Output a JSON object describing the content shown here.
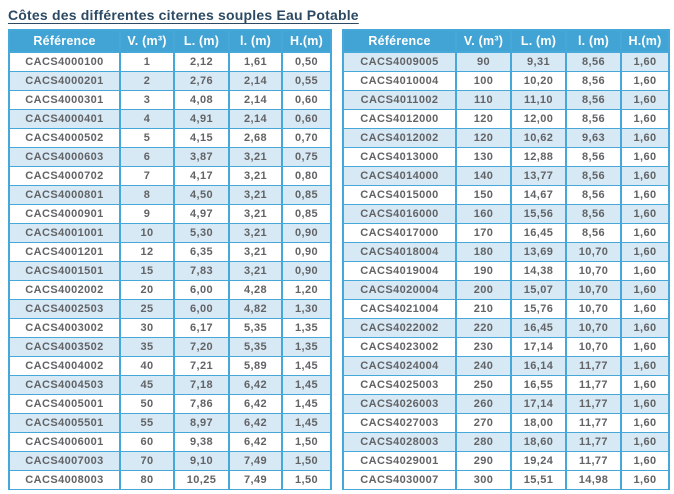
{
  "page": {
    "title": "Côtes des différentes citernes souples Eau Potable"
  },
  "colors": {
    "header_bg": "#41a4d4",
    "border": "#45a8d8",
    "row_alt": "#d8e9f6",
    "cell_text": "#626365",
    "header_text": "#ffffff",
    "title_color": "#2c4a63",
    "page_bg": "#ffffff"
  },
  "columns": [
    "Référence",
    "V. (m³)",
    "L. (m)",
    "l. (m)",
    "H.(m)"
  ],
  "left_table": {
    "rows": [
      [
        "CACS4000100",
        "1",
        "2,12",
        "1,61",
        "0,50"
      ],
      [
        "CACS4000201",
        "2",
        "2,76",
        "2,14",
        "0,55"
      ],
      [
        "CACS4000301",
        "3",
        "4,08",
        "2,14",
        "0,60"
      ],
      [
        "CACS4000401",
        "4",
        "4,91",
        "2,14",
        "0,60"
      ],
      [
        "CACS4000502",
        "5",
        "4,15",
        "2,68",
        "0,70"
      ],
      [
        "CACS4000603",
        "6",
        "3,87",
        "3,21",
        "0,75"
      ],
      [
        "CACS4000702",
        "7",
        "4,17",
        "3,21",
        "0,80"
      ],
      [
        "CACS4000801",
        "8",
        "4,50",
        "3,21",
        "0,85"
      ],
      [
        "CACS4000901",
        "9",
        "4,97",
        "3,21",
        "0,85"
      ],
      [
        "CACS4001001",
        "10",
        "5,30",
        "3,21",
        "0,90"
      ],
      [
        "CACS4001201",
        "12",
        "6,35",
        "3,21",
        "0,90"
      ],
      [
        "CACS4001501",
        "15",
        "7,83",
        "3,21",
        "0,90"
      ],
      [
        "CACS4002002",
        "20",
        "6,00",
        "4,28",
        "1,20"
      ],
      [
        "CACS4002503",
        "25",
        "6,00",
        "4,82",
        "1,30"
      ],
      [
        "CACS4003002",
        "30",
        "6,17",
        "5,35",
        "1,35"
      ],
      [
        "CACS4003502",
        "35",
        "7,20",
        "5,35",
        "1,35"
      ],
      [
        "CACS4004002",
        "40",
        "7,21",
        "5,89",
        "1,45"
      ],
      [
        "CACS4004503",
        "45",
        "7,18",
        "6,42",
        "1,45"
      ],
      [
        "CACS4005001",
        "50",
        "7,86",
        "6,42",
        "1,45"
      ],
      [
        "CACS4005501",
        "55",
        "8,97",
        "6,42",
        "1,45"
      ],
      [
        "CACS4006001",
        "60",
        "9,38",
        "6,42",
        "1,50"
      ],
      [
        "CACS4007003",
        "70",
        "9,10",
        "7,49",
        "1,50"
      ],
      [
        "CACS4008003",
        "80",
        "10,25",
        "7,49",
        "1,50"
      ]
    ]
  },
  "right_table": {
    "rows": [
      [
        "CACS4009005",
        "90",
        "9,31",
        "8,56",
        "1,60"
      ],
      [
        "CACS4010004",
        "100",
        "10,20",
        "8,56",
        "1,60"
      ],
      [
        "CACS4011002",
        "110",
        "11,10",
        "8,56",
        "1,60"
      ],
      [
        "CACS4012000",
        "120",
        "12,00",
        "8,56",
        "1,60"
      ],
      [
        "CACS4012002",
        "120",
        "10,62",
        "9,63",
        "1,60"
      ],
      [
        "CACS4013000",
        "130",
        "12,88",
        "8,56",
        "1,60"
      ],
      [
        "CACS4014000",
        "140",
        "13,77",
        "8,56",
        "1,60"
      ],
      [
        "CACS4015000",
        "150",
        "14,67",
        "8,56",
        "1,60"
      ],
      [
        "CACS4016000",
        "160",
        "15,56",
        "8,56",
        "1,60"
      ],
      [
        "CACS4017000",
        "170",
        "16,45",
        "8,56",
        "1,60"
      ],
      [
        "CACS4018004",
        "180",
        "13,69",
        "10,70",
        "1,60"
      ],
      [
        "CACS4019004",
        "190",
        "14,38",
        "10,70",
        "1,60"
      ],
      [
        "CACS4020004",
        "200",
        "15,07",
        "10,70",
        "1,60"
      ],
      [
        "CACS4021004",
        "210",
        "15,76",
        "10,70",
        "1,60"
      ],
      [
        "CACS4022002",
        "220",
        "16,45",
        "10,70",
        "1,60"
      ],
      [
        "CACS4023002",
        "230",
        "17,14",
        "10,70",
        "1,60"
      ],
      [
        "CACS4024004",
        "240",
        "16,14",
        "11,77",
        "1,60"
      ],
      [
        "CACS4025003",
        "250",
        "16,55",
        "11,77",
        "1,60"
      ],
      [
        "CACS4026003",
        "260",
        "17,14",
        "11,77",
        "1,60"
      ],
      [
        "CACS4027003",
        "270",
        "18,00",
        "11,77",
        "1,60"
      ],
      [
        "CACS4028003",
        "280",
        "18,60",
        "11,77",
        "1,60"
      ],
      [
        "CACS4029001",
        "290",
        "19,24",
        "11,77",
        "1,60"
      ],
      [
        "CACS4030007",
        "300",
        "15,51",
        "14,98",
        "1,60"
      ]
    ]
  }
}
